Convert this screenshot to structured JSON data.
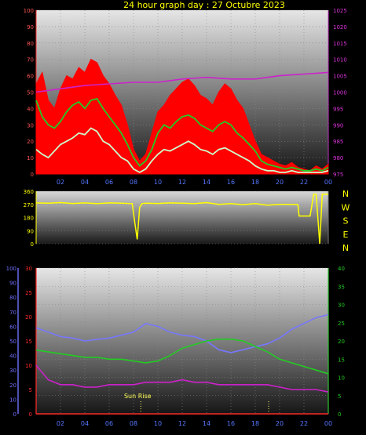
{
  "title": "24 hour graph day : 27 Octubre 2023",
  "annotation_sunrise": "Sun Rise",
  "colors": {
    "background": "#000000",
    "title": "#ffff00",
    "gust": "#ff0000",
    "avg_speed": "#22cc22",
    "wind_light": "#ccffcc",
    "pressure": "#cc22cc",
    "direction": "#ffff00",
    "left_axis_blue": "#6f6fff",
    "left_axis_red": "#ff2a2a",
    "right_axis_green": "#22cc22",
    "temperature": "#7777ff",
    "humidity": "#22cc22",
    "magenta_trace": "#cc22cc"
  },
  "chart_data": [
    {
      "type": "line",
      "title": "24 hour graph day : 27 Octubre 2023",
      "xlabel": "",
      "ylabel": "",
      "x_ticks": [
        "02",
        "04",
        "06",
        "08",
        "10",
        "12",
        "14",
        "16",
        "18",
        "20",
        "22",
        "00"
      ],
      "xlim": [
        0,
        24
      ],
      "ylim_left": [
        0,
        100
      ],
      "yticks_left": [
        0,
        10,
        20,
        30,
        40,
        50,
        60,
        70,
        80,
        90,
        100
      ],
      "ylim_right": [
        975,
        1025
      ],
      "yticks_right": [
        975,
        980,
        985,
        990,
        995,
        1000,
        1005,
        1010,
        1015,
        1020,
        1025
      ],
      "grid": true,
      "series": [
        {
          "axis": "left",
          "color": "#ff0000",
          "style": "fill",
          "x": [
            0,
            0.5,
            1,
            1.5,
            2,
            2.5,
            3,
            3.5,
            4,
            4.5,
            5,
            5.5,
            6,
            6.5,
            7,
            7.5,
            8,
            8.5,
            9,
            9.5,
            10,
            10.5,
            11,
            11.5,
            12,
            12.5,
            13,
            13.5,
            14,
            14.5,
            15,
            15.5,
            16,
            16.5,
            17,
            17.5,
            18,
            18.5,
            19,
            19.5,
            20,
            20.5,
            21,
            21.5,
            22,
            22.5,
            23,
            23.5,
            24
          ],
          "values": [
            55,
            62,
            45,
            40,
            52,
            60,
            58,
            65,
            62,
            70,
            68,
            60,
            55,
            48,
            42,
            30,
            15,
            8,
            12,
            25,
            38,
            42,
            48,
            52,
            56,
            58,
            54,
            48,
            46,
            42,
            50,
            55,
            52,
            45,
            40,
            30,
            20,
            12,
            10,
            8,
            6,
            5,
            7,
            4,
            3,
            2,
            5,
            3,
            6
          ]
        },
        {
          "axis": "left",
          "color": "#22cc22",
          "style": "line",
          "x": [
            0,
            0.5,
            1,
            1.5,
            2,
            2.5,
            3,
            3.5,
            4,
            4.5,
            5,
            5.5,
            6,
            6.5,
            7,
            7.5,
            8,
            8.5,
            9,
            9.5,
            10,
            10.5,
            11,
            11.5,
            12,
            12.5,
            13,
            13.5,
            14,
            14.5,
            15,
            15.5,
            16,
            16.5,
            17,
            17.5,
            18,
            18.5,
            19,
            19.5,
            20,
            20.5,
            21,
            21.5,
            22,
            22.5,
            23,
            23.5,
            24
          ],
          "values": [
            45,
            35,
            30,
            28,
            32,
            38,
            42,
            44,
            40,
            45,
            46,
            40,
            35,
            30,
            25,
            18,
            10,
            5,
            8,
            15,
            25,
            30,
            28,
            32,
            35,
            36,
            34,
            30,
            28,
            26,
            30,
            32,
            30,
            25,
            22,
            18,
            14,
            8,
            6,
            5,
            4,
            3,
            4,
            3,
            2,
            2,
            3,
            2,
            4
          ]
        },
        {
          "axis": "left",
          "color": "#ccffcc",
          "style": "line",
          "x": [
            0,
            0.5,
            1,
            1.5,
            2,
            2.5,
            3,
            3.5,
            4,
            4.5,
            5,
            5.5,
            6,
            6.5,
            7,
            7.5,
            8,
            8.5,
            9,
            9.5,
            10,
            10.5,
            11,
            11.5,
            12,
            12.5,
            13,
            13.5,
            14,
            14.5,
            15,
            15.5,
            16,
            16.5,
            17,
            17.5,
            18,
            18.5,
            19,
            19.5,
            20,
            20.5,
            21,
            21.5,
            22,
            22.5,
            23,
            23.5,
            24
          ],
          "values": [
            15,
            12,
            10,
            14,
            18,
            20,
            22,
            25,
            24,
            28,
            26,
            20,
            18,
            14,
            10,
            8,
            3,
            1,
            3,
            8,
            12,
            15,
            14,
            16,
            18,
            20,
            18,
            15,
            14,
            12,
            15,
            16,
            14,
            12,
            10,
            8,
            5,
            3,
            2,
            2,
            1,
            1,
            2,
            1,
            1,
            1,
            1,
            1,
            2
          ]
        },
        {
          "axis": "right",
          "color": "#cc22cc",
          "style": "line",
          "x": [
            0,
            2,
            4,
            6,
            8,
            10,
            12,
            14,
            16,
            18,
            20,
            22,
            24
          ],
          "values": [
            1000,
            1001,
            1002,
            1002.5,
            1003,
            1003,
            1004,
            1004.5,
            1004,
            1004,
            1005,
            1005.5,
            1006
          ]
        }
      ]
    },
    {
      "type": "line",
      "title": "",
      "x_ticks": [],
      "xlim": [
        0,
        24
      ],
      "ylim_left": [
        0,
        360
      ],
      "yticks_left": [
        0,
        90,
        180,
        270,
        360
      ],
      "direction_labels": [
        "N",
        "W",
        "S",
        "E",
        "N"
      ],
      "grid": true,
      "series": [
        {
          "axis": "left",
          "color": "#ffff00",
          "style": "line",
          "x": [
            0,
            1,
            2,
            3,
            4,
            5,
            6,
            7,
            7.9,
            8.1,
            8.3,
            8.5,
            8.7,
            9,
            10,
            11,
            12,
            13,
            14,
            15,
            16,
            17,
            18,
            19,
            20,
            21,
            21.5,
            21.6,
            22,
            22.5,
            22.8,
            23,
            23.3,
            23.5,
            23.7,
            24
          ],
          "values": [
            280,
            278,
            282,
            276,
            280,
            275,
            280,
            278,
            275,
            150,
            30,
            250,
            275,
            278,
            276,
            280,
            278,
            275,
            282,
            270,
            275,
            268,
            275,
            265,
            270,
            270,
            268,
            190,
            190,
            190,
            340,
            340,
            0,
            340,
            340,
            340
          ]
        }
      ]
    },
    {
      "type": "line",
      "title": "",
      "x_ticks": [
        "02",
        "04",
        "06",
        "08",
        "10",
        "12",
        "14",
        "16",
        "18",
        "20",
        "22",
        "00"
      ],
      "xlim": [
        0,
        24
      ],
      "ylim_left_blue": [
        0,
        100
      ],
      "yticks_left_blue": [
        0,
        10,
        20,
        30,
        40,
        50,
        60,
        70,
        80,
        90,
        100
      ],
      "ylim_left_red": [
        0,
        30
      ],
      "yticks_left_red": [
        0,
        5,
        10,
        15,
        20,
        25,
        30
      ],
      "ylim_right": [
        0,
        40
      ],
      "yticks_right": [
        0,
        5,
        10,
        15,
        20,
        25,
        30,
        35,
        40
      ],
      "grid": true,
      "series": [
        {
          "axis": "left_blue",
          "color": "#7777ff",
          "style": "line",
          "x": [
            0,
            1,
            2,
            3,
            4,
            5,
            6,
            7,
            8,
            9,
            10,
            11,
            12,
            13,
            14,
            15,
            16,
            17,
            18,
            19,
            20,
            21,
            22,
            23,
            24
          ],
          "values": [
            59,
            56,
            53,
            52,
            50,
            51,
            52,
            54,
            56,
            62,
            60,
            56,
            54,
            53,
            50,
            44,
            42,
            44,
            46,
            48,
            52,
            58,
            62,
            66,
            68
          ]
        },
        {
          "axis": "right",
          "color": "#22cc22",
          "style": "line",
          "x": [
            0,
            1,
            2,
            3,
            4,
            5,
            6,
            7,
            8,
            9,
            10,
            11,
            12,
            13,
            14,
            15,
            16,
            17,
            18,
            19,
            20,
            21,
            22,
            23,
            24
          ],
          "values": [
            17.5,
            17,
            16.5,
            16,
            15.5,
            15.5,
            15,
            15,
            14.5,
            14,
            14.5,
            16,
            18,
            19,
            20,
            20.5,
            20.5,
            20,
            18.5,
            17,
            15,
            14,
            13,
            12,
            11
          ]
        },
        {
          "axis": "left_red",
          "color": "#cc22cc",
          "style": "line",
          "x": [
            0,
            1,
            2,
            3,
            4,
            5,
            6,
            7,
            8,
            9,
            10,
            11,
            12,
            13,
            14,
            15,
            16,
            17,
            18,
            19,
            20,
            21,
            22,
            23,
            24
          ],
          "values": [
            10,
            7,
            6,
            6,
            5.5,
            5.5,
            6,
            6,
            6,
            6.5,
            6.5,
            6.5,
            7,
            6.5,
            6.5,
            6,
            6,
            6,
            6,
            6,
            5.5,
            5,
            5,
            5,
            4.5
          ]
        },
        {
          "axis": "left_red",
          "color": "#ff2a2a",
          "style": "line",
          "x": [
            0,
            24
          ],
          "values": [
            0,
            0
          ]
        }
      ],
      "annotations": [
        {
          "label": "Sun Rise",
          "x": 8.6
        }
      ]
    }
  ]
}
